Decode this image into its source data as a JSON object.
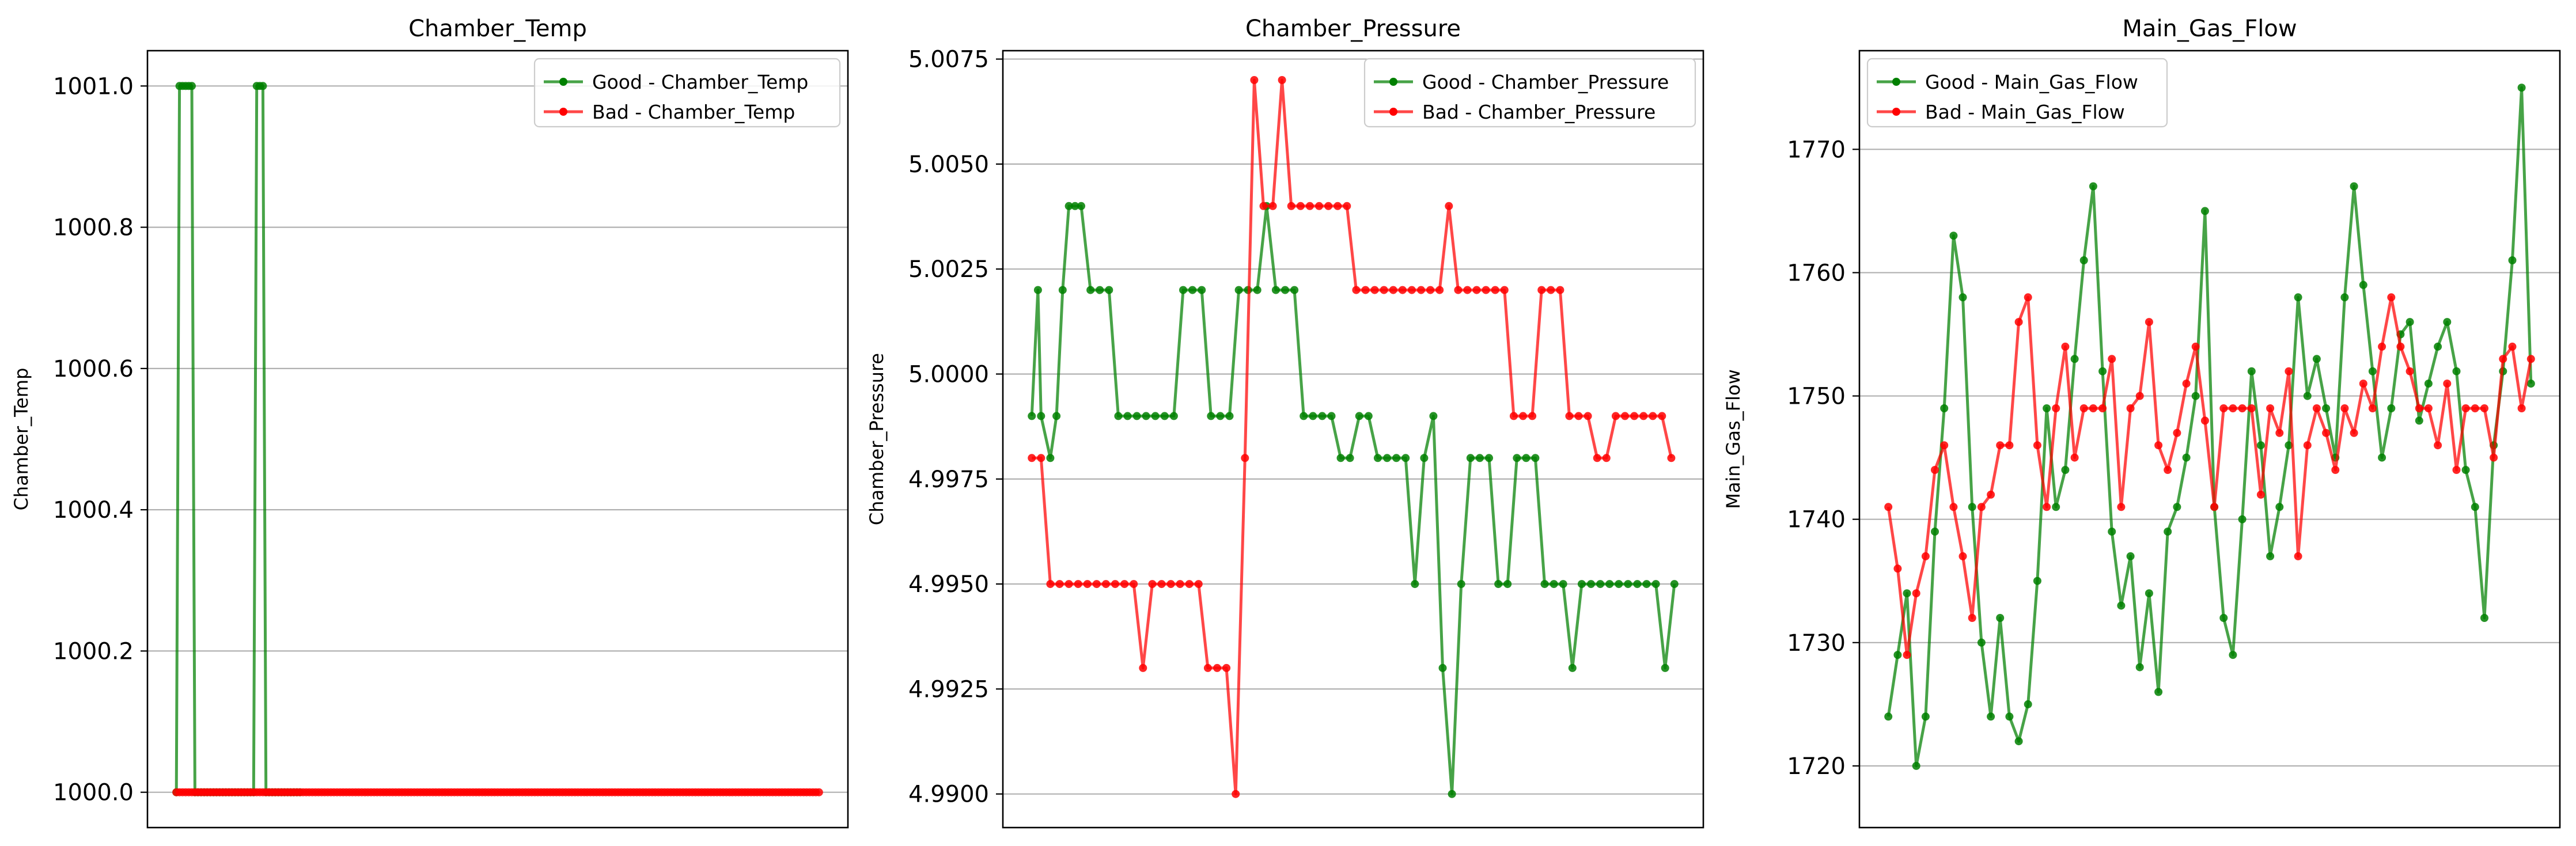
{
  "chart_data": [
    {
      "type": "line",
      "title": "Chamber_Temp",
      "xlabel": "",
      "ylabel": "Chamber_Temp",
      "ylim": [
        999.95,
        1001.05
      ],
      "yticks": [
        1000.0,
        1000.2,
        1000.4,
        1000.6,
        1000.8,
        1001.0
      ],
      "ytick_labels": [
        "1000.0",
        "1000.2",
        "1000.4",
        "1000.6",
        "1000.8",
        "1001.0"
      ],
      "x_ticks_shown": false,
      "grid": "y",
      "legend": "top-right",
      "series": [
        {
          "name": "Good - Chamber_Temp",
          "color": "#008000",
          "x": [
            0,
            1,
            2,
            3,
            4,
            5,
            6,
            7,
            8,
            9,
            10,
            11,
            12,
            13,
            14,
            15,
            16,
            17,
            18,
            19,
            20,
            21,
            22,
            23,
            24,
            25,
            26,
            27,
            28,
            29,
            30,
            31,
            32,
            33,
            34,
            35,
            36,
            37,
            38,
            39,
            40
          ],
          "values": [
            1000.0,
            1001.0,
            1001.0,
            1001.0,
            1001.0,
            1001.0,
            1000.0,
            1000.0,
            1000.0,
            1000.0,
            1000.0,
            1000.0,
            1000.0,
            1000.0,
            1000.0,
            1000.0,
            1000.0,
            1000.0,
            1000.0,
            1000.0,
            1000.0,
            1000.0,
            1000.0,
            1000.0,
            1000.0,
            1000.0,
            1001.0,
            1001.0,
            1001.0,
            1000.0,
            1000.0,
            1000.0,
            1000.0,
            1000.0,
            1000.0,
            1000.0,
            1000.0,
            1000.0,
            1000.0,
            1000.0,
            1000.0
          ]
        },
        {
          "name": "Bad - Chamber_Temp",
          "color": "#ff0000",
          "x_start": 0,
          "x_end": 208,
          "n": 209,
          "constant_value": 1000.0
        }
      ]
    },
    {
      "type": "line",
      "title": "Chamber_Pressure",
      "xlabel": "",
      "ylabel": "Chamber_Pressure",
      "ylim": [
        4.9892,
        5.0077
      ],
      "yticks": [
        4.99,
        4.9925,
        4.995,
        4.9975,
        5.0,
        5.0025,
        5.005,
        5.0075
      ],
      "ytick_labels": [
        "4.9900",
        "4.9925",
        "4.9950",
        "4.9975",
        "5.0000",
        "5.0025",
        "5.0050",
        "5.0075"
      ],
      "x_ticks_shown": false,
      "grid": "y",
      "legend": "top-right",
      "series": [
        {
          "name": "Good - Chamber_Pressure",
          "color": "#008000",
          "x": [
            0,
            2,
            3,
            6,
            8,
            10,
            12,
            14,
            16,
            19,
            22,
            25,
            28,
            31,
            34,
            37,
            40,
            43,
            46,
            49,
            52,
            55,
            58,
            61,
            64,
            67,
            70,
            73,
            76,
            79,
            82,
            85,
            88,
            91,
            94,
            97,
            100,
            103,
            106,
            109,
            112,
            115,
            118,
            121,
            124,
            127,
            130,
            133,
            136,
            139,
            142,
            145,
            148,
            151,
            154,
            157,
            160,
            163,
            166,
            169,
            172,
            175,
            178,
            181,
            184,
            187,
            190,
            193,
            196,
            199,
            202,
            205,
            208
          ],
          "values": [
            4.999,
            5.002,
            4.999,
            4.998,
            4.999,
            5.002,
            5.004,
            5.004,
            5.004,
            5.002,
            5.002,
            5.002,
            4.999,
            4.999,
            4.999,
            4.999,
            4.999,
            4.999,
            4.999,
            5.002,
            5.002,
            5.002,
            4.999,
            4.999,
            4.999,
            5.002,
            5.002,
            5.002,
            5.004,
            5.002,
            5.002,
            5.002,
            4.999,
            4.999,
            4.999,
            4.999,
            4.998,
            4.998,
            4.999,
            4.999,
            4.998,
            4.998,
            4.998,
            4.998,
            4.995,
            4.998,
            4.999,
            4.993,
            4.99,
            4.995,
            4.998,
            4.998,
            4.998,
            4.995,
            4.995,
            4.998,
            4.998,
            4.998,
            4.995,
            4.995,
            4.995,
            4.993,
            4.995,
            4.995,
            4.995,
            4.995,
            4.995,
            4.995,
            4.995,
            4.995,
            4.995,
            4.993,
            4.995
          ]
        },
        {
          "name": "Bad - Chamber_Pressure",
          "color": "#ff0000",
          "x": [
            0,
            3,
            6,
            9,
            12,
            15,
            18,
            21,
            24,
            27,
            30,
            33,
            36,
            39,
            42,
            45,
            48,
            51,
            54,
            57,
            60,
            63,
            66,
            69,
            72,
            75,
            78,
            81,
            84,
            87,
            90,
            93,
            96,
            99,
            102,
            105,
            108,
            111,
            114,
            117,
            120,
            123,
            126,
            129,
            132,
            135,
            138,
            141,
            144,
            147,
            150,
            153,
            156,
            159,
            162,
            165,
            168,
            171,
            174,
            177,
            180,
            183,
            186,
            189,
            192,
            195,
            198,
            201,
            204,
            207
          ],
          "values": [
            4.998,
            4.998,
            4.995,
            4.995,
            4.995,
            4.995,
            4.995,
            4.995,
            4.995,
            4.995,
            4.995,
            4.995,
            4.993,
            4.995,
            4.995,
            4.995,
            4.995,
            4.995,
            4.995,
            4.993,
            4.993,
            4.993,
            4.99,
            4.998,
            5.007,
            5.004,
            5.004,
            5.007,
            5.004,
            5.004,
            5.004,
            5.004,
            5.004,
            5.004,
            5.004,
            5.002,
            5.002,
            5.002,
            5.002,
            5.002,
            5.002,
            5.002,
            5.002,
            5.002,
            5.002,
            5.004,
            5.002,
            5.002,
            5.002,
            5.002,
            5.002,
            5.002,
            4.999,
            4.999,
            4.999,
            5.002,
            5.002,
            5.002,
            4.999,
            4.999,
            4.999,
            4.998,
            4.998,
            4.999,
            4.999,
            4.999,
            4.999,
            4.999,
            4.999,
            4.998
          ]
        }
      ]
    },
    {
      "type": "line",
      "title": "Main_Gas_Flow",
      "xlabel": "",
      "ylabel": "Main_Gas_Flow",
      "ylim": [
        1715,
        1778
      ],
      "yticks": [
        1720,
        1730,
        1740,
        1750,
        1760,
        1770
      ],
      "ytick_labels": [
        "1720",
        "1730",
        "1740",
        "1750",
        "1760",
        "1770"
      ],
      "x_ticks_shown": false,
      "grid": "y",
      "legend": "top-left",
      "series": [
        {
          "name": "Good - Main_Gas_Flow",
          "color": "#008000",
          "x": [
            0,
            3,
            6,
            9,
            12,
            15,
            18,
            21,
            24,
            27,
            30,
            33,
            36,
            39,
            42,
            45,
            48,
            51,
            54,
            57,
            60,
            63,
            66,
            69,
            72,
            75,
            78,
            81,
            84,
            87,
            90,
            93,
            96,
            99,
            102,
            105,
            108,
            111,
            114,
            117,
            120,
            123,
            126,
            129,
            132,
            135,
            138,
            141,
            144,
            147,
            150,
            153,
            156,
            159,
            162,
            165,
            168,
            171,
            174,
            177,
            180,
            183,
            186,
            189,
            192,
            195,
            198,
            201,
            204,
            207
          ],
          "values": [
            1724,
            1729,
            1734,
            1720,
            1724,
            1739,
            1749,
            1763,
            1758,
            1741,
            1730,
            1724,
            1732,
            1724,
            1722,
            1725,
            1735,
            1749,
            1741,
            1744,
            1753,
            1761,
            1767,
            1752,
            1739,
            1733,
            1737,
            1728,
            1734,
            1726,
            1739,
            1741,
            1745,
            1750,
            1765,
            1741,
            1732,
            1729,
            1740,
            1752,
            1746,
            1737,
            1741,
            1746,
            1758,
            1750,
            1753,
            1749,
            1745,
            1758,
            1767,
            1759,
            1752,
            1745,
            1749,
            1755,
            1756,
            1748,
            1751,
            1754,
            1756,
            1752,
            1744,
            1741,
            1732,
            1746,
            1752,
            1761,
            1775,
            1751
          ]
        },
        {
          "name": "Bad - Main_Gas_Flow",
          "color": "#ff0000",
          "x": [
            0,
            3,
            6,
            9,
            12,
            15,
            18,
            21,
            24,
            27,
            30,
            33,
            36,
            39,
            42,
            45,
            48,
            51,
            54,
            57,
            60,
            63,
            66,
            69,
            72,
            75,
            78,
            81,
            84,
            87,
            90,
            93,
            96,
            99,
            102,
            105,
            108,
            111,
            114,
            117,
            120,
            123,
            126,
            129,
            132,
            135,
            138,
            141,
            144,
            147,
            150,
            153,
            156,
            159,
            162,
            165,
            168,
            171,
            174,
            177,
            180,
            183,
            186,
            189,
            192,
            195,
            198,
            201,
            204,
            207
          ],
          "values": [
            1741,
            1736,
            1729,
            1734,
            1737,
            1744,
            1746,
            1741,
            1737,
            1732,
            1741,
            1742,
            1746,
            1746,
            1756,
            1758,
            1746,
            1741,
            1749,
            1754,
            1745,
            1749,
            1749,
            1749,
            1753,
            1741,
            1749,
            1750,
            1756,
            1746,
            1744,
            1747,
            1751,
            1754,
            1748,
            1741,
            1749,
            1749,
            1749,
            1749,
            1742,
            1749,
            1747,
            1752,
            1737,
            1746,
            1749,
            1747,
            1744,
            1749,
            1747,
            1751,
            1749,
            1754,
            1758,
            1754,
            1752,
            1749,
            1749,
            1746,
            1751,
            1744,
            1749,
            1749,
            1749,
            1745,
            1753,
            1754,
            1749,
            1753
          ]
        }
      ]
    }
  ]
}
